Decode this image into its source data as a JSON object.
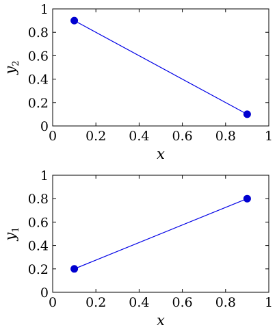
{
  "chart_data": [
    {
      "type": "line",
      "xlabel": "x",
      "ylabel": "y",
      "ylabel_sub": "2",
      "xlim": [
        0,
        1
      ],
      "ylim": [
        0,
        1
      ],
      "xticks": [
        0,
        0.2,
        0.4,
        0.6,
        0.8,
        1
      ],
      "xtick_labels": [
        "0",
        "0.2",
        "0.4",
        "0.6",
        "0.8",
        "1"
      ],
      "yticks": [
        0,
        0.2,
        0.4,
        0.6,
        0.8,
        1
      ],
      "ytick_labels": [
        "0",
        "0.2",
        "0.4",
        "0.6",
        "0.8",
        "1"
      ],
      "grid": false,
      "color": "#0000e6",
      "x": [
        0.1,
        0.9
      ],
      "y": [
        0.9,
        0.1
      ]
    },
    {
      "type": "line",
      "xlabel": "x",
      "ylabel": "y",
      "ylabel_sub": "1",
      "xlim": [
        0,
        1
      ],
      "ylim": [
        0,
        1
      ],
      "xticks": [
        0,
        0.2,
        0.4,
        0.6,
        0.8,
        1
      ],
      "xtick_labels": [
        "0",
        "0.2",
        "0.4",
        "0.6",
        "0.8",
        "1"
      ],
      "yticks": [
        0,
        0.2,
        0.4,
        0.6,
        0.8,
        1
      ],
      "ytick_labels": [
        "0",
        "0.2",
        "0.4",
        "0.6",
        "0.8",
        "1"
      ],
      "grid": false,
      "color": "#0000e6",
      "x": [
        0.1,
        0.9
      ],
      "y": [
        0.2,
        0.8
      ]
    }
  ]
}
